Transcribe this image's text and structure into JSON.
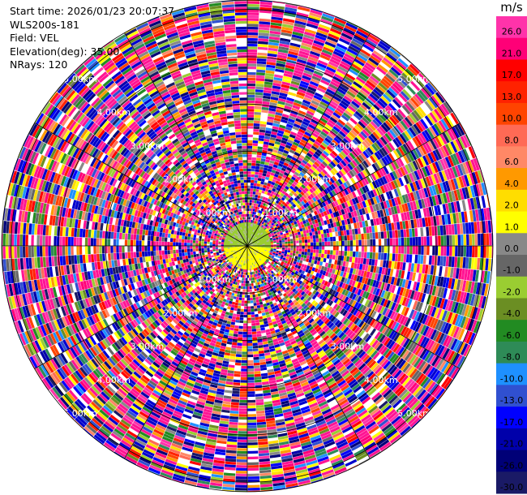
{
  "header": {
    "lines": [
      "Start time: 2026/01/23 20:07:37",
      "WLS200s-181",
      "Field: VEL",
      "Elevation(deg): 35.00",
      "NRays: 120"
    ]
  },
  "colorbar": {
    "unit": "m/s",
    "labels": [
      "26.0",
      "21.0",
      "17.0",
      "13.0",
      "10.0",
      "8.0",
      "6.0",
      "4.0",
      "2.0",
      "1.0",
      "0.0",
      "-1.0",
      "-2.0",
      "-4.0",
      "-6.0",
      "-8.0",
      "-10.0",
      "-13.0",
      "-17.0",
      "-21.0",
      "-26.0",
      "-30.0"
    ],
    "colors": [
      "#ff33aa",
      "#ff0077",
      "#ff0000",
      "#ff2200",
      "#ff4400",
      "#ff6a55",
      "#ff8866",
      "#ff9900",
      "#ffdd00",
      "#ffff00",
      "#888888",
      "#666666",
      "#9acd32",
      "#6b8e23",
      "#228b22",
      "#2e8b57",
      "#1e90ff",
      "#3050d0",
      "#0000ff",
      "#0000aa",
      "#000077",
      "#1a1a66"
    ]
  },
  "chart_data": {
    "type": "heatmap",
    "projection": "polar-ppi",
    "field": "VEL",
    "unit": "m/s",
    "nrays": 120,
    "range_rings_km": [
      1.0,
      2.0,
      3.0,
      4.0,
      5.0
    ],
    "ring_labels": [
      "1.00km",
      "2.00km",
      "3.00km",
      "4.00km",
      "5.00km"
    ],
    "max_range_km": 5.2,
    "inner_region_km": 0.5,
    "inner_region_colors": [
      "#9acd32",
      "#ffff00",
      "#aaaaaa"
    ],
    "grid": true,
    "colorbar_position": "right"
  }
}
